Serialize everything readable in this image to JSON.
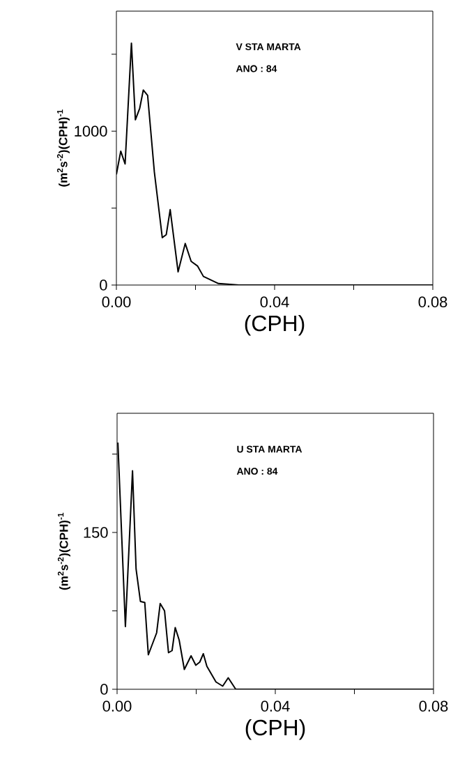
{
  "chart_data": [
    {
      "type": "line",
      "xlabel": "(CPH)",
      "ylabel": "(m$^{2}$s$^{-2}$)(CPH)$^{-1}$",
      "annotations": [
        "V STA MARTA",
        "ANO : 84"
      ],
      "x": [
        0,
        0.0011,
        0.0022,
        0.0038,
        0.0048,
        0.0059,
        0.0068,
        0.0079,
        0.0096,
        0.0116,
        0.0126,
        0.0136,
        0.0156,
        0.0174,
        0.0189,
        0.0205,
        0.022,
        0.0258,
        0.031,
        0.08
      ],
      "series": [
        {
          "color": "#000000",
          "values": [
            719,
            870,
            787,
            1572,
            1074,
            1149,
            1267,
            1232,
            734,
            308,
            327,
            490,
            86,
            270,
            154,
            124,
            56,
            10,
            0,
            0
          ]
        }
      ],
      "xlim": [
        0,
        0.08
      ],
      "ylim": [
        0,
        1780
      ],
      "xticks": [
        {
          "value": 0,
          "label": "0.00"
        },
        {
          "value": 0.02,
          "label": null
        },
        {
          "value": 0.04,
          "label": "0.04"
        },
        {
          "value": 0.06,
          "label": null
        },
        {
          "value": 0.08,
          "label": "0.08"
        }
      ],
      "yticks": [
        {
          "value": 0,
          "label": "0"
        },
        {
          "value": 500,
          "label": null
        },
        {
          "value": 1000,
          "label": "1000"
        },
        {
          "value": 1500,
          "label": null
        }
      ],
      "marker": "none",
      "line_style": "solid"
    },
    {
      "type": "line",
      "xlabel": "(CPH)",
      "ylabel": "(m$^{2}$s$^{-2}$)(CPH)$^{-1}$",
      "annotations": [
        "U STA MARTA",
        "ANO : 84"
      ],
      "x": [
        0.0002,
        0.0021,
        0.0039,
        0.0048,
        0.0059,
        0.007,
        0.0079,
        0.01,
        0.0109,
        0.012,
        0.013,
        0.0139,
        0.0147,
        0.0157,
        0.017,
        0.0187,
        0.0199,
        0.0209,
        0.0218,
        0.0227,
        0.025,
        0.0267,
        0.0281,
        0.03,
        0.08
      ],
      "series": [
        {
          "color": "#000000",
          "values": [
            236,
            60,
            209,
            115,
            84,
            83,
            33,
            54,
            82,
            75,
            35,
            37,
            59,
            47,
            19,
            32,
            23,
            26,
            34,
            22,
            7,
            3,
            11,
            0,
            0
          ]
        }
      ],
      "xlim": [
        0,
        0.08
      ],
      "ylim": [
        0,
        264
      ],
      "xticks": [
        {
          "value": 0,
          "label": "0.00"
        },
        {
          "value": 0.02,
          "label": null
        },
        {
          "value": 0.04,
          "label": "0.04"
        },
        {
          "value": 0.06,
          "label": null
        },
        {
          "value": 0.08,
          "label": "0.08"
        }
      ],
      "yticks": [
        {
          "value": 0,
          "label": "0"
        },
        {
          "value": 75,
          "label": null
        },
        {
          "value": 150,
          "label": "150"
        },
        {
          "value": 225,
          "label": null
        }
      ],
      "marker": "none",
      "line_style": "solid"
    }
  ]
}
